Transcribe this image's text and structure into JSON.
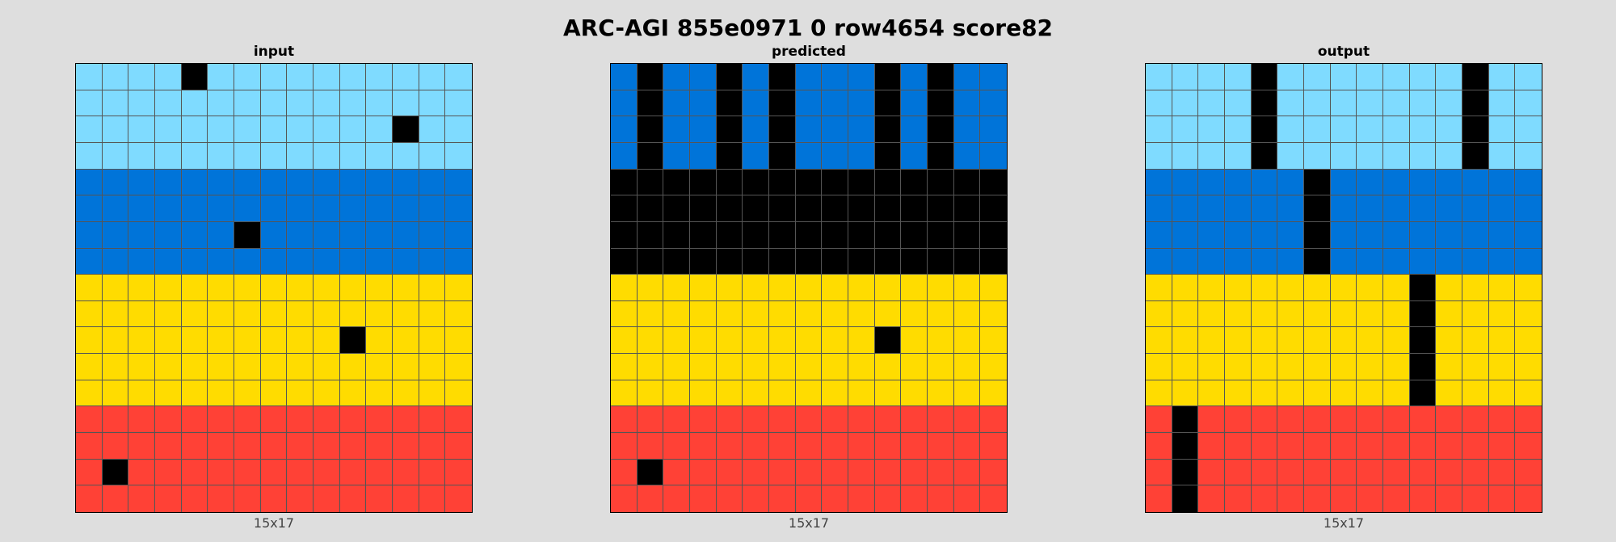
{
  "title": "ARC-AGI 855e0971 0 row4654 score82",
  "palette": {
    "0": "#000000",
    "1": "#0074D9",
    "2": "#FF4136",
    "4": "#FFDC00",
    "8": "#7FDBFF"
  },
  "panels": [
    {
      "label": "input",
      "dims": "15x17",
      "grid": [
        [
          8,
          8,
          8,
          8,
          0,
          8,
          8,
          8,
          8,
          8,
          8,
          8,
          8,
          8,
          8
        ],
        [
          8,
          8,
          8,
          8,
          8,
          8,
          8,
          8,
          8,
          8,
          8,
          8,
          8,
          8,
          8
        ],
        [
          8,
          8,
          8,
          8,
          8,
          8,
          8,
          8,
          8,
          8,
          8,
          8,
          0,
          8,
          8
        ],
        [
          8,
          8,
          8,
          8,
          8,
          8,
          8,
          8,
          8,
          8,
          8,
          8,
          8,
          8,
          8
        ],
        [
          1,
          1,
          1,
          1,
          1,
          1,
          1,
          1,
          1,
          1,
          1,
          1,
          1,
          1,
          1
        ],
        [
          1,
          1,
          1,
          1,
          1,
          1,
          1,
          1,
          1,
          1,
          1,
          1,
          1,
          1,
          1
        ],
        [
          1,
          1,
          1,
          1,
          1,
          1,
          0,
          1,
          1,
          1,
          1,
          1,
          1,
          1,
          1
        ],
        [
          1,
          1,
          1,
          1,
          1,
          1,
          1,
          1,
          1,
          1,
          1,
          1,
          1,
          1,
          1
        ],
        [
          4,
          4,
          4,
          4,
          4,
          4,
          4,
          4,
          4,
          4,
          4,
          4,
          4,
          4,
          4
        ],
        [
          4,
          4,
          4,
          4,
          4,
          4,
          4,
          4,
          4,
          4,
          4,
          4,
          4,
          4,
          4
        ],
        [
          4,
          4,
          4,
          4,
          4,
          4,
          4,
          4,
          4,
          4,
          0,
          4,
          4,
          4,
          4
        ],
        [
          4,
          4,
          4,
          4,
          4,
          4,
          4,
          4,
          4,
          4,
          4,
          4,
          4,
          4,
          4
        ],
        [
          4,
          4,
          4,
          4,
          4,
          4,
          4,
          4,
          4,
          4,
          4,
          4,
          4,
          4,
          4
        ],
        [
          2,
          2,
          2,
          2,
          2,
          2,
          2,
          2,
          2,
          2,
          2,
          2,
          2,
          2,
          2
        ],
        [
          2,
          2,
          2,
          2,
          2,
          2,
          2,
          2,
          2,
          2,
          2,
          2,
          2,
          2,
          2
        ],
        [
          2,
          0,
          2,
          2,
          2,
          2,
          2,
          2,
          2,
          2,
          2,
          2,
          2,
          2,
          2
        ],
        [
          2,
          2,
          2,
          2,
          2,
          2,
          2,
          2,
          2,
          2,
          2,
          2,
          2,
          2,
          2
        ]
      ]
    },
    {
      "label": "predicted",
      "dims": "15x17",
      "grid": [
        [
          1,
          0,
          1,
          1,
          0,
          1,
          0,
          1,
          1,
          1,
          0,
          1,
          0,
          1,
          1
        ],
        [
          1,
          0,
          1,
          1,
          0,
          1,
          0,
          1,
          1,
          1,
          0,
          1,
          0,
          1,
          1
        ],
        [
          1,
          0,
          1,
          1,
          0,
          1,
          0,
          1,
          1,
          1,
          0,
          1,
          0,
          1,
          1
        ],
        [
          1,
          0,
          1,
          1,
          0,
          1,
          0,
          1,
          1,
          1,
          0,
          1,
          0,
          1,
          1
        ],
        [
          0,
          0,
          0,
          0,
          0,
          0,
          0,
          0,
          0,
          0,
          0,
          0,
          0,
          0,
          0
        ],
        [
          0,
          0,
          0,
          0,
          0,
          0,
          0,
          0,
          0,
          0,
          0,
          0,
          0,
          0,
          0
        ],
        [
          0,
          0,
          0,
          0,
          0,
          0,
          0,
          0,
          0,
          0,
          0,
          0,
          0,
          0,
          0
        ],
        [
          0,
          0,
          0,
          0,
          0,
          0,
          0,
          0,
          0,
          0,
          0,
          0,
          0,
          0,
          0
        ],
        [
          4,
          4,
          4,
          4,
          4,
          4,
          4,
          4,
          4,
          4,
          4,
          4,
          4,
          4,
          4
        ],
        [
          4,
          4,
          4,
          4,
          4,
          4,
          4,
          4,
          4,
          4,
          4,
          4,
          4,
          4,
          4
        ],
        [
          4,
          4,
          4,
          4,
          4,
          4,
          4,
          4,
          4,
          4,
          0,
          4,
          4,
          4,
          4
        ],
        [
          4,
          4,
          4,
          4,
          4,
          4,
          4,
          4,
          4,
          4,
          4,
          4,
          4,
          4,
          4
        ],
        [
          4,
          4,
          4,
          4,
          4,
          4,
          4,
          4,
          4,
          4,
          4,
          4,
          4,
          4,
          4
        ],
        [
          2,
          2,
          2,
          2,
          2,
          2,
          2,
          2,
          2,
          2,
          2,
          2,
          2,
          2,
          2
        ],
        [
          2,
          2,
          2,
          2,
          2,
          2,
          2,
          2,
          2,
          2,
          2,
          2,
          2,
          2,
          2
        ],
        [
          2,
          0,
          2,
          2,
          2,
          2,
          2,
          2,
          2,
          2,
          2,
          2,
          2,
          2,
          2
        ],
        [
          2,
          2,
          2,
          2,
          2,
          2,
          2,
          2,
          2,
          2,
          2,
          2,
          2,
          2,
          2
        ]
      ]
    },
    {
      "label": "output",
      "dims": "15x17",
      "grid": [
        [
          8,
          8,
          8,
          8,
          0,
          8,
          8,
          8,
          8,
          8,
          8,
          8,
          0,
          8,
          8
        ],
        [
          8,
          8,
          8,
          8,
          0,
          8,
          8,
          8,
          8,
          8,
          8,
          8,
          0,
          8,
          8
        ],
        [
          8,
          8,
          8,
          8,
          0,
          8,
          8,
          8,
          8,
          8,
          8,
          8,
          0,
          8,
          8
        ],
        [
          8,
          8,
          8,
          8,
          0,
          8,
          8,
          8,
          8,
          8,
          8,
          8,
          0,
          8,
          8
        ],
        [
          1,
          1,
          1,
          1,
          1,
          1,
          0,
          1,
          1,
          1,
          1,
          1,
          1,
          1,
          1
        ],
        [
          1,
          1,
          1,
          1,
          1,
          1,
          0,
          1,
          1,
          1,
          1,
          1,
          1,
          1,
          1
        ],
        [
          1,
          1,
          1,
          1,
          1,
          1,
          0,
          1,
          1,
          1,
          1,
          1,
          1,
          1,
          1
        ],
        [
          1,
          1,
          1,
          1,
          1,
          1,
          0,
          1,
          1,
          1,
          1,
          1,
          1,
          1,
          1
        ],
        [
          4,
          4,
          4,
          4,
          4,
          4,
          4,
          4,
          4,
          4,
          0,
          4,
          4,
          4,
          4
        ],
        [
          4,
          4,
          4,
          4,
          4,
          4,
          4,
          4,
          4,
          4,
          0,
          4,
          4,
          4,
          4
        ],
        [
          4,
          4,
          4,
          4,
          4,
          4,
          4,
          4,
          4,
          4,
          0,
          4,
          4,
          4,
          4
        ],
        [
          4,
          4,
          4,
          4,
          4,
          4,
          4,
          4,
          4,
          4,
          0,
          4,
          4,
          4,
          4
        ],
        [
          4,
          4,
          4,
          4,
          4,
          4,
          4,
          4,
          4,
          4,
          0,
          4,
          4,
          4,
          4
        ],
        [
          2,
          0,
          2,
          2,
          2,
          2,
          2,
          2,
          2,
          2,
          2,
          2,
          2,
          2,
          2
        ],
        [
          2,
          0,
          2,
          2,
          2,
          2,
          2,
          2,
          2,
          2,
          2,
          2,
          2,
          2,
          2
        ],
        [
          2,
          0,
          2,
          2,
          2,
          2,
          2,
          2,
          2,
          2,
          2,
          2,
          2,
          2,
          2
        ],
        [
          2,
          0,
          2,
          2,
          2,
          2,
          2,
          2,
          2,
          2,
          2,
          2,
          2,
          2,
          2
        ]
      ]
    }
  ]
}
